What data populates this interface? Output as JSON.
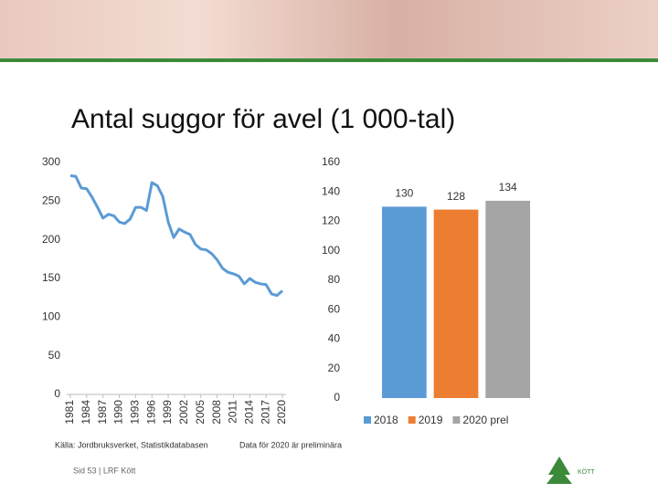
{
  "title": "Antal suggor för avel (1 000-tal)",
  "chart_data": [
    {
      "type": "line",
      "x": [
        1981,
        1982,
        1983,
        1984,
        1985,
        1986,
        1987,
        1988,
        1989,
        1990,
        1991,
        1992,
        1993,
        1994,
        1995,
        1996,
        1997,
        1998,
        1999,
        2000,
        2001,
        2002,
        2003,
        2004,
        2005,
        2006,
        2007,
        2008,
        2009,
        2010,
        2011,
        2012,
        2013,
        2014,
        2015,
        2016,
        2017,
        2018,
        2019,
        2020
      ],
      "series": [
        {
          "color": "#5b9bd5",
          "values": [
            283,
            282,
            267,
            266,
            255,
            242,
            228,
            233,
            231,
            223,
            221,
            227,
            242,
            242,
            238,
            274,
            270,
            256,
            223,
            203,
            214,
            210,
            207,
            194,
            188,
            187,
            182,
            174,
            163,
            158,
            156,
            153,
            143,
            150,
            145,
            143,
            142,
            130,
            128,
            134
          ]
        }
      ],
      "xlim": [
        1981,
        2020
      ],
      "xticks": [
        1981,
        1984,
        1987,
        1990,
        1993,
        1996,
        1999,
        2002,
        2005,
        2008,
        2011,
        2014,
        2017,
        2020
      ],
      "ylim": [
        0,
        300
      ],
      "yticks": [
        0,
        50,
        100,
        150,
        200,
        250,
        300
      ]
    },
    {
      "type": "bar",
      "categories": [
        "2018",
        "2019",
        "2020 prel"
      ],
      "values": [
        130,
        128,
        134
      ],
      "colors": [
        "#5b9bd5",
        "#ed7d31",
        "#a5a5a5"
      ],
      "ylim": [
        0,
        160
      ],
      "yticks": [
        0,
        20,
        40,
        60,
        80,
        100,
        120,
        140,
        160
      ],
      "legend": "bottom"
    }
  ],
  "source": "Källa: Jordbruksverket, Statistikdatabasen",
  "note": "Data för 2020 är preliminära",
  "footer": "Sid 53 | LRF Kött",
  "logo_text": "KÖTT"
}
